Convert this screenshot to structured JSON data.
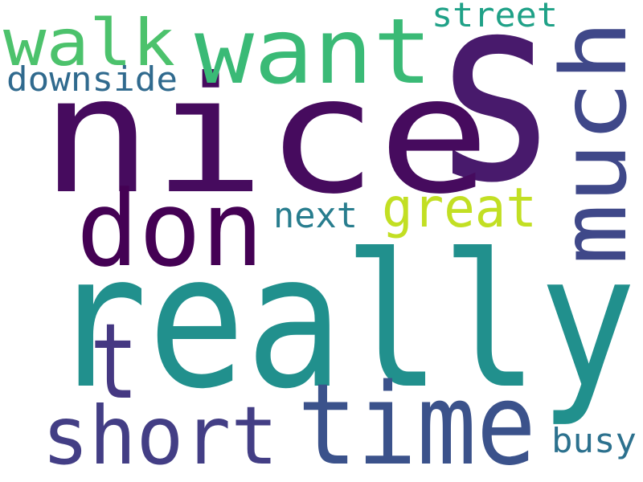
{
  "word_cloud": {
    "words": [
      {
        "text": "s",
        "color": "#481a6c"
      },
      {
        "text": "nice",
        "color": "#460b5e"
      },
      {
        "text": "really",
        "color": "#21908d"
      },
      {
        "text": "want",
        "color": "#3aba76"
      },
      {
        "text": "walk",
        "color": "#4cc26c"
      },
      {
        "text": "much",
        "color": "#3f4889"
      },
      {
        "text": "don",
        "color": "#440154"
      },
      {
        "text": "t",
        "color": "#453882"
      },
      {
        "text": "time",
        "color": "#3b528b"
      },
      {
        "text": "short",
        "color": "#433e85"
      },
      {
        "text": "great",
        "color": "#c2df23"
      },
      {
        "text": "next",
        "color": "#287d8e"
      },
      {
        "text": "street",
        "color": "#1fa187"
      },
      {
        "text": "downside",
        "color": "#306a8e"
      },
      {
        "text": "busy",
        "color": "#2c718e"
      }
    ]
  }
}
